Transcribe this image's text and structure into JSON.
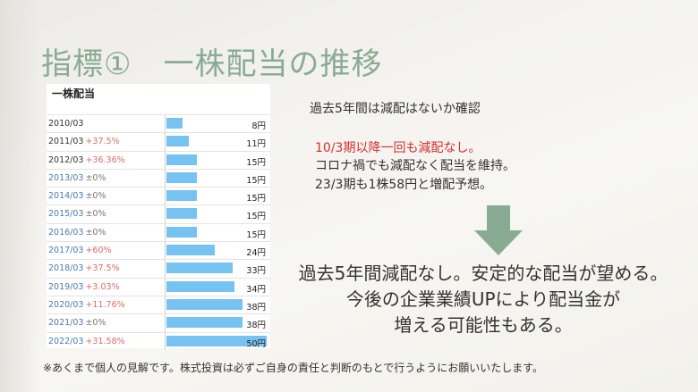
{
  "slide": {
    "title": "指標①　一株配当の推移",
    "table": {
      "title": "一株配当",
      "rows": [
        {
          "year": "2010/03",
          "change": "",
          "value": "8円",
          "amount": 8,
          "label_color": "dark",
          "change_color": "none"
        },
        {
          "year": "2011/03",
          "change": "+37.5%",
          "value": "11円",
          "amount": 11,
          "label_color": "dark",
          "change_color": "red"
        },
        {
          "year": "2012/03",
          "change": "+36.36%",
          "value": "15円",
          "amount": 15,
          "label_color": "dark",
          "change_color": "red"
        },
        {
          "year": "2013/03",
          "change": "±0%",
          "value": "15円",
          "amount": 15,
          "label_color": "blue",
          "change_color": "gray"
        },
        {
          "year": "2014/03",
          "change": "±0%",
          "value": "15円",
          "amount": 15,
          "label_color": "blue",
          "change_color": "gray"
        },
        {
          "year": "2015/03",
          "change": "±0%",
          "value": "15円",
          "amount": 15,
          "label_color": "blue",
          "change_color": "gray"
        },
        {
          "year": "2016/03",
          "change": "±0%",
          "value": "15円",
          "amount": 15,
          "label_color": "blue",
          "change_color": "gray"
        },
        {
          "year": "2017/03",
          "change": "+60%",
          "value": "24円",
          "amount": 24,
          "label_color": "blue",
          "change_color": "red"
        },
        {
          "year": "2018/03",
          "change": "+37.5%",
          "value": "33円",
          "amount": 33,
          "label_color": "blue",
          "change_color": "red"
        },
        {
          "year": "2019/03",
          "change": "+3.03%",
          "value": "34円",
          "amount": 34,
          "label_color": "blue",
          "change_color": "red"
        },
        {
          "year": "2020/03",
          "change": "+11.76%",
          "value": "38円",
          "amount": 38,
          "label_color": "blue",
          "change_color": "red"
        },
        {
          "year": "2021/03",
          "change": "±0%",
          "value": "38円",
          "amount": 38,
          "label_color": "blue",
          "change_color": "gray"
        },
        {
          "year": "2022/03",
          "change": "+31.58%",
          "value": "50円",
          "amount": 50,
          "label_color": "blue",
          "change_color": "red"
        }
      ],
      "max_amount": 50,
      "bar_color": "#76c2f0"
    },
    "check_text": "過去5年間は減配はないか確認",
    "points": {
      "highlight": "10/3期以降一回も減配なし。",
      "lines": [
        "コロナ禍でも減配なく配当を維持。",
        "23/3期も1株58円と増配予想。"
      ]
    },
    "arrow_icon": "down-arrow-icon",
    "arrow_color": "#8aab93",
    "conclusion": [
      "過去5年間減配なし。安定的な配当が望める。",
      "今後の企業業績UPにより配当金が",
      "増える可能性もある。"
    ],
    "disclaimer": "※あくまで個人の見解です。株式投資は必ずご自身の責任と判断のもとで行うようにお願いいたします。"
  }
}
